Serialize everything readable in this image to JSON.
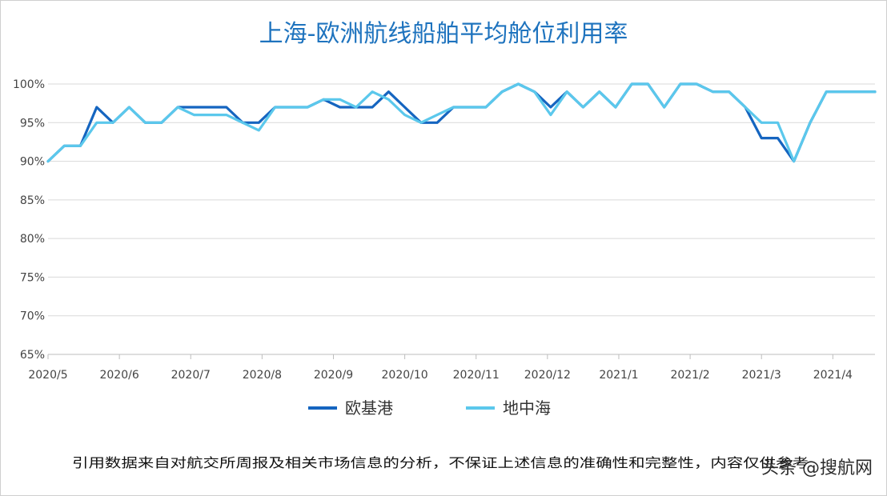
{
  "chart_data": {
    "type": "line",
    "title": "上海-欧洲航线船舶平均舱位利用率",
    "xlabel": "",
    "ylabel": "",
    "ylim": [
      0.65,
      1.0
    ],
    "yticks": [
      "65%",
      "70%",
      "75%",
      "80%",
      "85%",
      "90%",
      "95%",
      "100%"
    ],
    "ytick_values": [
      0.65,
      0.7,
      0.75,
      0.8,
      0.85,
      0.9,
      0.95,
      1.0
    ],
    "month_labels": [
      "2020/5",
      "2020/6",
      "2020/7",
      "2020/8",
      "2020/9",
      "2020/10",
      "2020/11",
      "2020/12",
      "2021/1",
      "2021/2",
      "2021/3",
      "2021/4"
    ],
    "weeks_per_month": 4.4,
    "grid": true,
    "legend_position": "bottom",
    "series": [
      {
        "name": "欧基港",
        "color": "#1565c0",
        "values": [
          0.9,
          0.92,
          0.92,
          0.97,
          0.95,
          0.97,
          0.95,
          0.95,
          0.97,
          0.97,
          0.97,
          0.97,
          0.95,
          0.95,
          0.97,
          0.97,
          0.97,
          0.98,
          0.97,
          0.97,
          0.97,
          0.99,
          0.97,
          0.95,
          0.95,
          0.97,
          0.97,
          0.97,
          0.99,
          1.0,
          0.99,
          0.97,
          0.99,
          0.97,
          0.99,
          0.97,
          1.0,
          1.0,
          0.97,
          1.0,
          1.0,
          0.99,
          0.99,
          0.97,
          0.93,
          0.93,
          0.9,
          0.95,
          0.99,
          0.99,
          0.99,
          0.99
        ]
      },
      {
        "name": "地中海",
        "color": "#5bc8ec",
        "values": [
          0.9,
          0.92,
          0.92,
          0.95,
          0.95,
          0.97,
          0.95,
          0.95,
          0.97,
          0.96,
          0.96,
          0.96,
          0.95,
          0.94,
          0.97,
          0.97,
          0.97,
          0.98,
          0.98,
          0.97,
          0.99,
          0.98,
          0.96,
          0.95,
          0.96,
          0.97,
          0.97,
          0.97,
          0.99,
          1.0,
          0.99,
          0.96,
          0.99,
          0.97,
          0.99,
          0.97,
          1.0,
          1.0,
          0.97,
          1.0,
          1.0,
          0.99,
          0.99,
          0.97,
          0.95,
          0.95,
          0.9,
          0.95,
          0.99,
          0.99,
          0.99,
          0.99
        ]
      }
    ]
  },
  "footnote": "引用数据来自对航交所周报及相关市场信息的分析，不保证上述信息的准确性和完整性，内容仅供参考",
  "watermark": "头条 @搜航网"
}
